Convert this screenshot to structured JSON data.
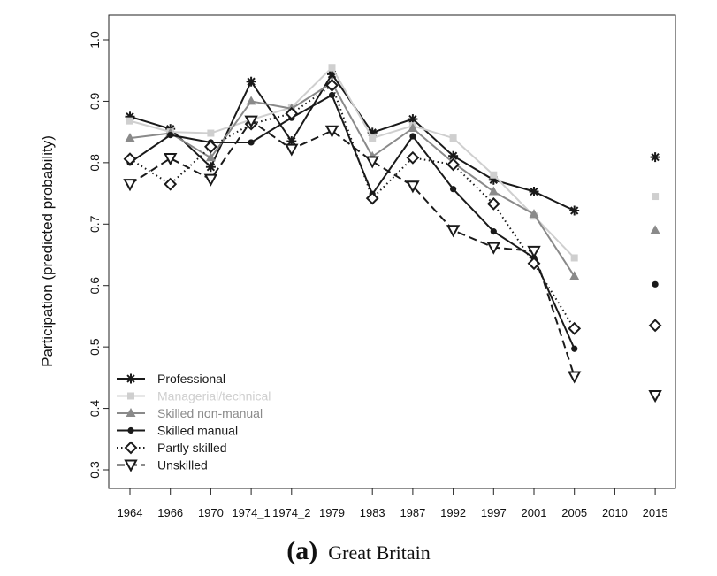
{
  "chart_data": {
    "type": "line",
    "ylabel": "Participation (predicted probability)",
    "xlabel": "",
    "categories": [
      "1964",
      "1966",
      "1970",
      "1974_1",
      "1974_2",
      "1979",
      "1983",
      "1987",
      "1992",
      "1997",
      "2001",
      "2005",
      "2010",
      "2015"
    ],
    "ylim": [
      0.3,
      1.0
    ],
    "yticks": [
      "0.3",
      "0.4",
      "0.5",
      "0.6",
      "0.7",
      "0.8",
      "0.9",
      "1.0"
    ],
    "legend_position": "bottom-left",
    "grid": false,
    "series": [
      {
        "name": "Professional",
        "color": "#1a1a1a",
        "dash": "solid",
        "marker": "asterisk",
        "values": [
          0.875,
          0.855,
          0.793,
          0.932,
          0.835,
          0.944,
          0.849,
          0.871,
          0.811,
          0.772,
          0.753,
          0.722,
          null,
          0.809
        ]
      },
      {
        "name": "Managerial/technical",
        "color": "#cfcfcf",
        "dash": "solid",
        "marker": "square",
        "values": [
          0.868,
          0.85,
          0.848,
          0.87,
          0.89,
          0.955,
          0.84,
          0.86,
          0.84,
          0.78,
          0.713,
          0.645,
          null,
          0.745
        ]
      },
      {
        "name": "Skilled non-manual",
        "color": "#8a8a8a",
        "dash": "solid",
        "marker": "triangle-up",
        "values": [
          0.84,
          0.848,
          0.808,
          0.9,
          0.888,
          0.93,
          0.81,
          0.856,
          0.8,
          0.753,
          0.716,
          0.615,
          null,
          0.69
        ]
      },
      {
        "name": "Skilled manual",
        "color": "#1a1a1a",
        "dash": "solid",
        "marker": "dot",
        "values": [
          0.8,
          0.845,
          0.833,
          0.833,
          0.873,
          0.91,
          0.749,
          0.843,
          0.757,
          0.688,
          0.645,
          0.497,
          null,
          0.602
        ]
      },
      {
        "name": "Partly skilled",
        "color": "#1a1a1a",
        "dash": "dotted",
        "marker": "diamond",
        "values": [
          0.806,
          0.765,
          0.826,
          0.863,
          0.88,
          0.926,
          0.742,
          0.808,
          0.797,
          0.733,
          0.636,
          0.53,
          null,
          0.535
        ]
      },
      {
        "name": "Unskilled",
        "color": "#1a1a1a",
        "dash": "dashed",
        "marker": "triangle-down",
        "values": [
          0.765,
          0.807,
          0.773,
          0.868,
          0.822,
          0.852,
          0.802,
          0.762,
          0.69,
          0.662,
          0.656,
          0.452,
          null,
          0.421
        ]
      }
    ]
  },
  "caption": {
    "panel": "(a)",
    "title": "Great Britain"
  }
}
